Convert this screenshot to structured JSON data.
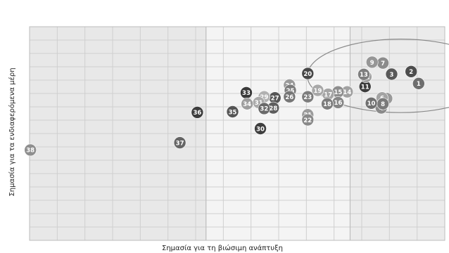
{
  "chart_data": {
    "type": "scatter",
    "xlabel": "Σημασία για τη βιώσιμη ανάπτυξη",
    "ylabel": "Σημασία για τα ενδιαφερόμενα μέρη",
    "xlim": [
      0,
      100
    ],
    "ylim": [
      0,
      100
    ],
    "grid": true,
    "zones": [
      {
        "x": [
          0,
          42.5
        ],
        "shade": "#e8e8e8"
      },
      {
        "x": [
          42.5,
          77.2
        ],
        "shade": "#f4f4f4"
      },
      {
        "x": [
          77.2,
          100
        ],
        "shade": "#ebebeb"
      }
    ],
    "highlight_circle": {
      "cx": 89.4,
      "cy": 77.0,
      "rx": 22.5,
      "ry": 17.2
    },
    "points": [
      {
        "label": "1",
        "x": 93.7,
        "y": 73.4,
        "color": "#6e6e6e"
      },
      {
        "label": "2",
        "x": 91.9,
        "y": 79.0,
        "color": "#4d4d4d"
      },
      {
        "label": "3",
        "x": 87.2,
        "y": 77.8,
        "color": "#595959"
      },
      {
        "label": "4",
        "x": 84.7,
        "y": 62.0,
        "color": "#8a8a8a"
      },
      {
        "label": "5",
        "x": 86.0,
        "y": 66.4,
        "color": "#999999"
      },
      {
        "label": "6",
        "x": 84.9,
        "y": 66.7,
        "color": "#a3a3a3"
      },
      {
        "label": "7",
        "x": 85.1,
        "y": 83.0,
        "color": "#8c8c8c"
      },
      {
        "label": "8",
        "x": 85.1,
        "y": 63.9,
        "color": "#7a7a7a"
      },
      {
        "label": "9",
        "x": 82.5,
        "y": 83.4,
        "color": "#969696"
      },
      {
        "label": "10",
        "x": 82.3,
        "y": 64.2,
        "color": "#707070"
      },
      {
        "label": "11",
        "x": 80.8,
        "y": 72.0,
        "color": "#3d3d3d"
      },
      {
        "label": "12",
        "x": 81.0,
        "y": 76.6,
        "color": "#a0a0a0"
      },
      {
        "label": "13",
        "x": 80.5,
        "y": 77.7,
        "color": "#7e7e7e"
      },
      {
        "label": "14",
        "x": 76.5,
        "y": 69.5,
        "color": "#a1a1a1"
      },
      {
        "label": "15",
        "x": 74.3,
        "y": 69.5,
        "color": "#8e8e8e"
      },
      {
        "label": "16",
        "x": 74.3,
        "y": 64.5,
        "color": "#858585"
      },
      {
        "label": "17",
        "x": 71.9,
        "y": 68.4,
        "color": "#a5a5a5"
      },
      {
        "label": "18",
        "x": 71.7,
        "y": 63.9,
        "color": "#7d7d7d"
      },
      {
        "label": "19",
        "x": 69.4,
        "y": 70.2,
        "color": "#a8a8a8"
      },
      {
        "label": "20",
        "x": 67.0,
        "y": 78.1,
        "color": "#474747"
      },
      {
        "label": "21",
        "x": 67.0,
        "y": 58.8,
        "color": "#9c9c9c"
      },
      {
        "label": "22",
        "x": 67.0,
        "y": 56.4,
        "color": "#898989"
      },
      {
        "label": "23",
        "x": 67.0,
        "y": 67.2,
        "color": "#7d7d7d"
      },
      {
        "label": "24",
        "x": 62.6,
        "y": 72.7,
        "color": "#9a9a9a"
      },
      {
        "label": "25",
        "x": 62.8,
        "y": 70.2,
        "color": "#7c7c7c"
      },
      {
        "label": "26",
        "x": 62.6,
        "y": 67.2,
        "color": "#767676"
      },
      {
        "label": "27",
        "x": 59.1,
        "y": 66.7,
        "color": "#565656"
      },
      {
        "label": "28",
        "x": 58.7,
        "y": 62.0,
        "color": "#5e5e5e"
      },
      {
        "label": "29",
        "x": 56.5,
        "y": 67.2,
        "color": "#b1b1b1"
      },
      {
        "label": "30",
        "x": 55.6,
        "y": 52.3,
        "color": "#3f3f3f"
      },
      {
        "label": "31",
        "x": 55.2,
        "y": 64.5,
        "color": "#a9a9a9"
      },
      {
        "label": "32",
        "x": 56.5,
        "y": 61.7,
        "color": "#6a6a6a"
      },
      {
        "label": "33",
        "x": 52.2,
        "y": 69.1,
        "color": "#3a3a3a"
      },
      {
        "label": "34",
        "x": 52.4,
        "y": 63.9,
        "color": "#9d9d9d"
      },
      {
        "label": "35",
        "x": 48.9,
        "y": 60.2,
        "color": "#555555"
      },
      {
        "label": "36",
        "x": 40.4,
        "y": 59.9,
        "color": "#3c3c3c"
      },
      {
        "label": "37",
        "x": 36.2,
        "y": 45.7,
        "color": "#656565"
      },
      {
        "label": "38",
        "x": 0.2,
        "y": 42.3,
        "color": "#8f8f8f"
      }
    ]
  }
}
